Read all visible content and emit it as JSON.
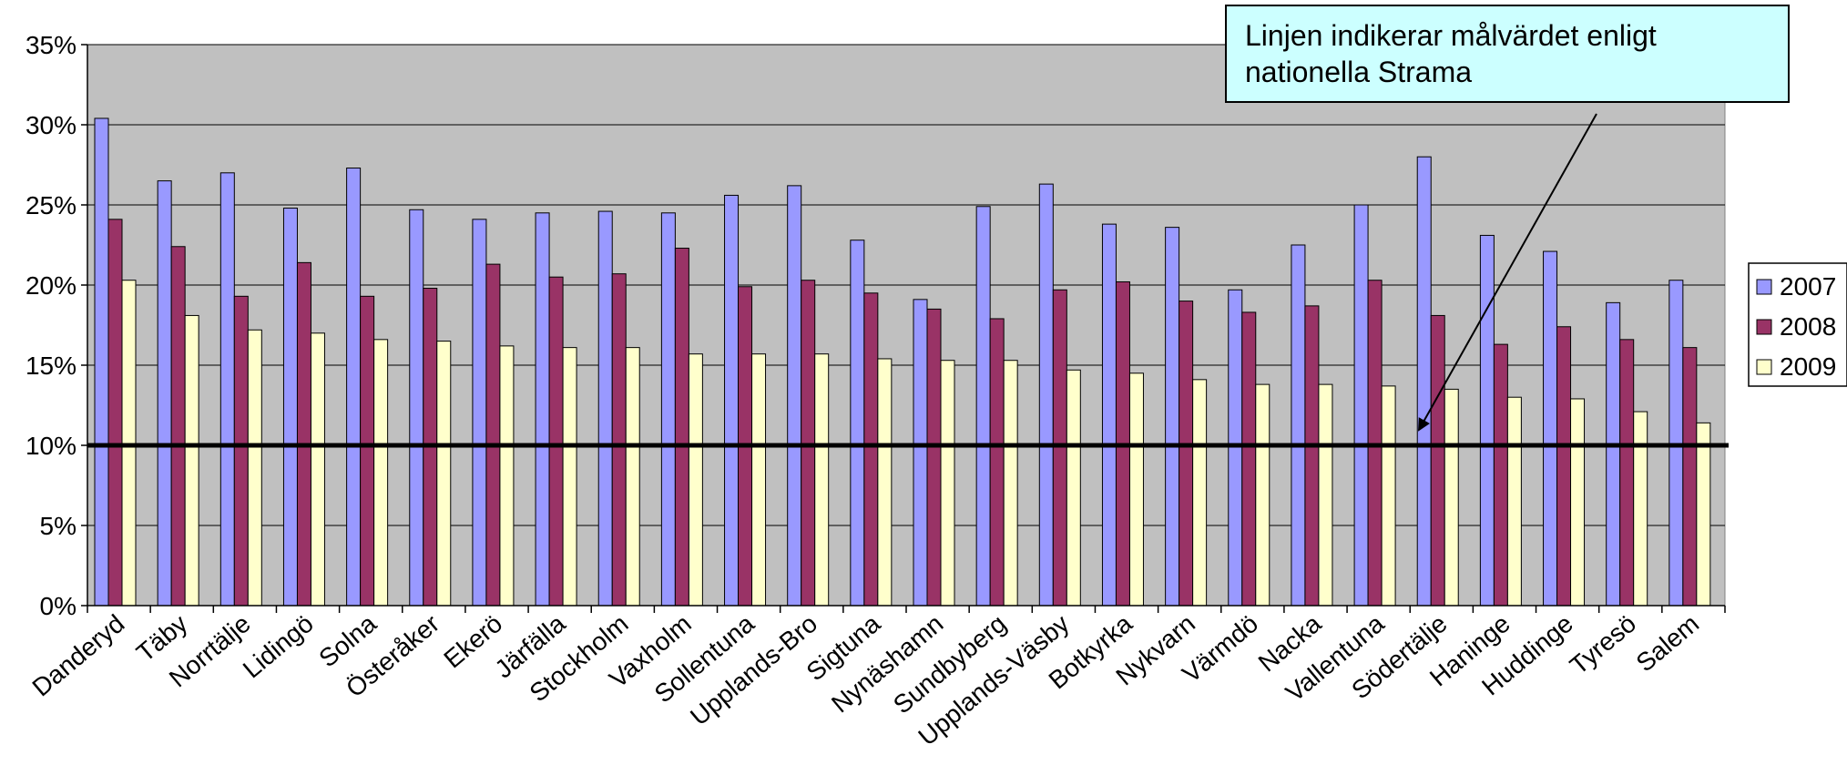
{
  "chart_data": {
    "type": "bar",
    "categories": [
      "Danderyd",
      "Täby",
      "Norrtälje",
      "Lidingö",
      "Solna",
      "Österåker",
      "Ekerö",
      "Järfälla",
      "Stockholm",
      "Vaxholm",
      "Sollentuna",
      "Upplands-Bro",
      "Sigtuna",
      "Nynäshamn",
      "Sundbyberg",
      "Upplands-Väsby",
      "Botkyrka",
      "Nykvarn",
      "Värmdö",
      "Nacka",
      "Vallentuna",
      "Södertälje",
      "Haninge",
      "Huddinge",
      "Tyresö",
      "Salem"
    ],
    "series": [
      {
        "name": "2007",
        "color": "#9999ff",
        "values": [
          30.4,
          26.5,
          27.0,
          24.8,
          27.3,
          24.7,
          24.1,
          24.5,
          24.6,
          24.5,
          25.6,
          26.2,
          22.8,
          19.1,
          24.9,
          26.3,
          23.8,
          23.6,
          19.7,
          22.5,
          25.0,
          28.0,
          23.1,
          22.1,
          18.9,
          20.3
        ]
      },
      {
        "name": "2008",
        "color": "#993366",
        "values": [
          24.1,
          22.4,
          19.3,
          21.4,
          19.3,
          19.8,
          21.3,
          20.5,
          20.7,
          22.3,
          19.9,
          20.3,
          19.5,
          18.5,
          17.9,
          19.7,
          20.2,
          19.0,
          18.3,
          18.7,
          20.3,
          18.1,
          16.3,
          17.4,
          16.6,
          16.1
        ]
      },
      {
        "name": "2009",
        "color": "#ffffcc",
        "values": [
          20.3,
          18.1,
          17.2,
          17.0,
          16.6,
          16.5,
          16.2,
          16.1,
          16.1,
          15.7,
          15.7,
          15.7,
          15.4,
          15.3,
          15.3,
          14.7,
          14.5,
          14.1,
          13.8,
          13.8,
          13.7,
          13.5,
          13.0,
          12.9,
          12.1,
          11.4
        ]
      }
    ],
    "y_tick_labels": [
      "0%",
      "5%",
      "10%",
      "15%",
      "20%",
      "25%",
      "30%",
      "35%"
    ],
    "ylim": [
      0,
      35
    ],
    "target_line": 10,
    "grid": true,
    "plot_background": "#c0c0c0",
    "legend_position": "right",
    "annotation": "Linjen indikerar målvärdet enligt nationella Strama"
  }
}
